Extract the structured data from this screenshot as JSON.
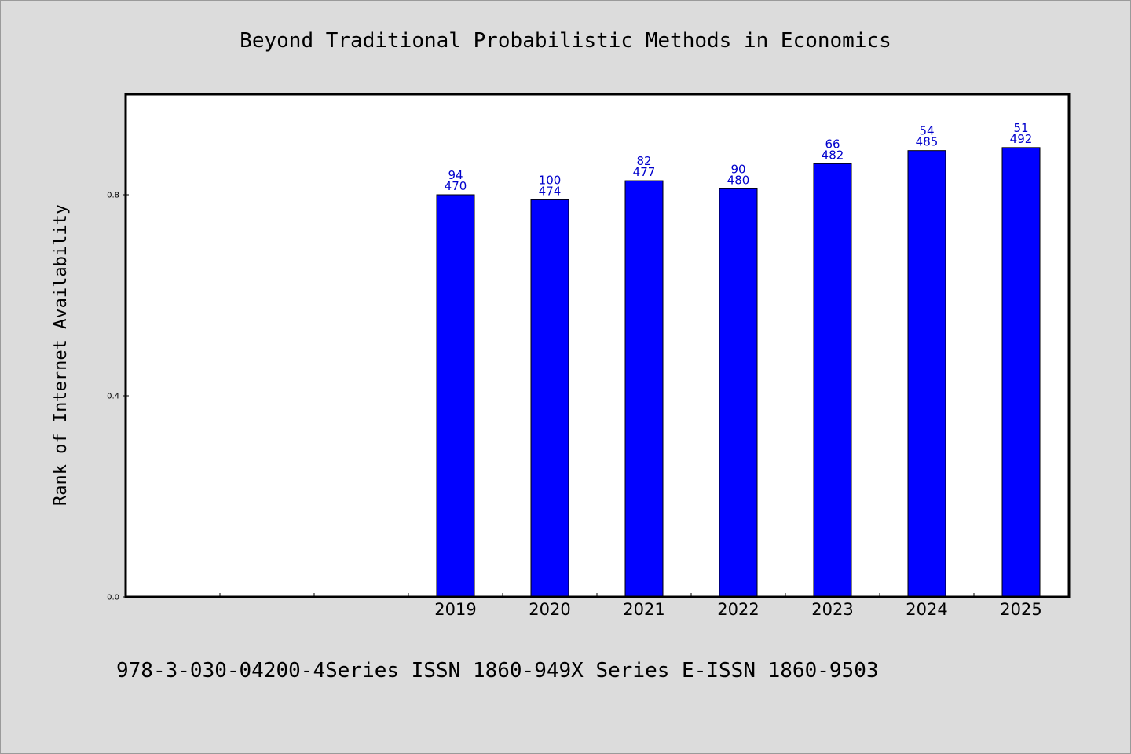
{
  "chart_data": {
    "type": "bar",
    "title": "Beyond Traditional Probabilistic Methods in Economics",
    "ylabel": "Rank of Internet Availability",
    "xlabel": "",
    "footer": "978-3-030-04200-4Series ISSN 1860-949X Series E-ISSN 1860-9503",
    "categories": [
      "2019",
      "2020",
      "2021",
      "2022",
      "2023",
      "2024",
      "2025"
    ],
    "values": [
      0.8,
      0.79,
      0.828,
      0.812,
      0.862,
      0.888,
      0.894
    ],
    "labels_top": [
      "94",
      "100",
      "82",
      "90",
      "66",
      "54",
      "51"
    ],
    "labels_bottom": [
      "470",
      "474",
      "477",
      "480",
      "482",
      "485",
      "492"
    ],
    "ylim": [
      0,
      1.0
    ],
    "yticks": [
      "0.0",
      "0.4",
      "0.8"
    ],
    "grid": false,
    "bar_color": "#0000ff",
    "label_color": "#0000cc"
  }
}
